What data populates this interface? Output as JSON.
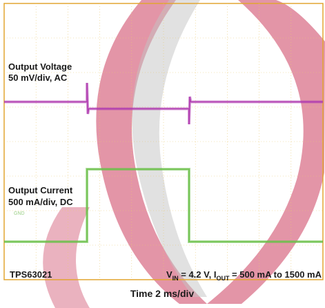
{
  "chart_data": {
    "type": "line",
    "title": "",
    "xlabel": "Time 2 ms/div",
    "ylabel": "",
    "divisions": {
      "x": 10,
      "y": 8
    },
    "xlim": [
      0,
      20
    ],
    "series": [
      {
        "name": "Output Voltage",
        "label_line1": "Output Voltage",
        "label_line2": "50 mV/div, AC",
        "color": "#b03cb0",
        "x": [
          0,
          5.2,
          5.2,
          5.25,
          5.3,
          11.6,
          11.6,
          11.65,
          11.7,
          20
        ],
        "y": [
          5.15,
          5.15,
          5.7,
          4.8,
          4.95,
          4.95,
          4.5,
          5.3,
          5.15,
          5.15
        ]
      },
      {
        "name": "Output Current",
        "label_line1": "Output Current",
        "label_line2": "500 mA/div, DC",
        "color": "#6cc04a",
        "x": [
          0,
          5.2,
          5.2,
          11.6,
          11.6,
          20
        ],
        "y": [
          1.1,
          1.1,
          3.2,
          3.2,
          1.1,
          1.1
        ]
      }
    ],
    "annotations": {
      "device": "TPS63021",
      "cond_v": "V",
      "cond_v_sub": "IN",
      "cond_mid": " = 4.2 V, I",
      "cond_i_sub": "OUT",
      "cond_end": " = 500 mA to 1500 mA",
      "gnd_marker": "GND"
    }
  }
}
